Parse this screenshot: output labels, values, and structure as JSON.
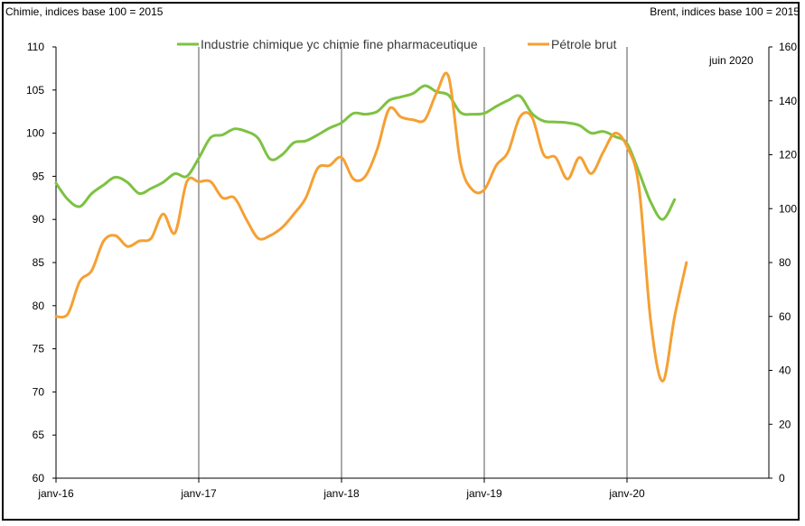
{
  "chart_data": {
    "type": "line",
    "title": "",
    "left_axis_label": "Chimie, indices base 100 = 2015",
    "right_axis_label": "Brent, indices base 100 = 2015",
    "annotation": "juin 2020",
    "x_tick_labels": [
      "janv-16",
      "janv-17",
      "janv-18",
      "janv-19",
      "janv-20"
    ],
    "y_left": {
      "range": [
        60,
        110
      ],
      "ticks": [
        60,
        65,
        70,
        75,
        80,
        85,
        90,
        95,
        100,
        105,
        110
      ]
    },
    "y_right": {
      "range": [
        0,
        160
      ],
      "ticks": [
        0,
        20,
        40,
        60,
        80,
        100,
        120,
        140,
        160
      ]
    },
    "legend_position": "top",
    "series": [
      {
        "name": "Industrie chimique yc chimie fine pharmaceutique",
        "axis": "left",
        "color": "#7dc242",
        "x": [
          "2016-01",
          "2016-02",
          "2016-03",
          "2016-04",
          "2016-05",
          "2016-06",
          "2016-07",
          "2016-08",
          "2016-09",
          "2016-10",
          "2016-11",
          "2016-12",
          "2017-01",
          "2017-02",
          "2017-03",
          "2017-04",
          "2017-05",
          "2017-06",
          "2017-07",
          "2017-08",
          "2017-09",
          "2017-10",
          "2017-11",
          "2017-12",
          "2018-01",
          "2018-02",
          "2018-03",
          "2018-04",
          "2018-05",
          "2018-06",
          "2018-07",
          "2018-08",
          "2018-09",
          "2018-10",
          "2018-11",
          "2018-12",
          "2019-01",
          "2019-02",
          "2019-03",
          "2019-04",
          "2019-05",
          "2019-06",
          "2019-07",
          "2019-08",
          "2019-09",
          "2019-10",
          "2019-11",
          "2019-12",
          "2020-01",
          "2020-02",
          "2020-03",
          "2020-04",
          "2020-05",
          "2020-06"
        ],
        "values": [
          94.2,
          92.3,
          91.5,
          93.0,
          94.0,
          94.9,
          94.3,
          93.0,
          93.6,
          94.3,
          95.3,
          95.0,
          97.1,
          99.5,
          99.8,
          100.5,
          100.2,
          99.4,
          97.0,
          97.5,
          98.9,
          99.1,
          99.8,
          100.6,
          101.2,
          102.3,
          102.2,
          102.5,
          103.8,
          104.2,
          104.6,
          105.5,
          104.8,
          104.4,
          102.4,
          102.2,
          102.3,
          103.1,
          103.8,
          104.3,
          102.3,
          101.4,
          101.3,
          101.2,
          100.9,
          100.0,
          100.2,
          99.6,
          98.8,
          95.5,
          92.0,
          90.0,
          92.3,
          null
        ]
      },
      {
        "name": "Pétrole brut",
        "axis": "right",
        "color": "#f5a033",
        "x": [
          "2016-01",
          "2016-02",
          "2016-03",
          "2016-04",
          "2016-05",
          "2016-06",
          "2016-07",
          "2016-08",
          "2016-09",
          "2016-10",
          "2016-11",
          "2016-12",
          "2017-01",
          "2017-02",
          "2017-03",
          "2017-04",
          "2017-05",
          "2017-06",
          "2017-07",
          "2017-08",
          "2017-09",
          "2017-10",
          "2017-11",
          "2017-12",
          "2018-01",
          "2018-02",
          "2018-03",
          "2018-04",
          "2018-05",
          "2018-06",
          "2018-07",
          "2018-08",
          "2018-09",
          "2018-10",
          "2018-11",
          "2018-12",
          "2019-01",
          "2019-02",
          "2019-03",
          "2019-04",
          "2019-05",
          "2019-06",
          "2019-07",
          "2019-08",
          "2019-09",
          "2019-10",
          "2019-11",
          "2019-12",
          "2020-01",
          "2020-02",
          "2020-03",
          "2020-04",
          "2020-05",
          "2020-06"
        ],
        "values": [
          60,
          61,
          73,
          77,
          88,
          90,
          86,
          88,
          89,
          98,
          91,
          110,
          110,
          110,
          104,
          104,
          96,
          89,
          90,
          93,
          98,
          104,
          115,
          116,
          119,
          111,
          112,
          122,
          137,
          134,
          133,
          133,
          143,
          149,
          117,
          107,
          107,
          116,
          121,
          134,
          134,
          120,
          119,
          111,
          119,
          113,
          121,
          128,
          123,
          108,
          58,
          36,
          60,
          80
        ]
      }
    ]
  }
}
